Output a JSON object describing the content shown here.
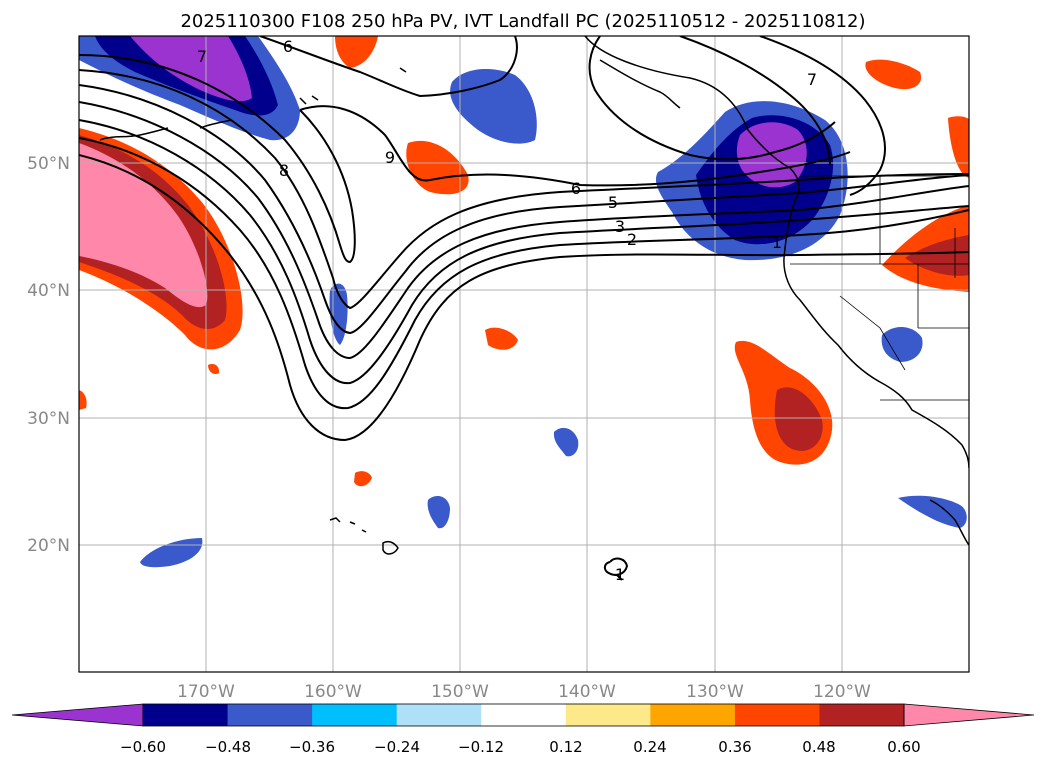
{
  "title": "2025110300 F108 250 hPa PV, IVT Landfall PC (2025110512 - 2025110812)",
  "map": {
    "projection": "PlateCarree",
    "lon_range": [
      -180,
      -110
    ],
    "lat_range": [
      10,
      60
    ],
    "x_ticks": [
      {
        "lon": -170,
        "label": "170°W"
      },
      {
        "lon": -160,
        "label": "160°W"
      },
      {
        "lon": -150,
        "label": "150°W"
      },
      {
        "lon": -140,
        "label": "140°W"
      },
      {
        "lon": -130,
        "label": "130°W"
      },
      {
        "lon": -120,
        "label": "120°W"
      }
    ],
    "y_ticks": [
      {
        "lat": 20,
        "label": "20°N"
      },
      {
        "lat": 30,
        "label": "30°N"
      },
      {
        "lat": 40,
        "label": "40°N"
      },
      {
        "lat": 50,
        "label": "50°N"
      }
    ],
    "grid": true
  },
  "contour_labels": [
    {
      "text": "7",
      "lon": -170.5,
      "lat": 57.5
    },
    {
      "text": "6",
      "lon": -163.5,
      "lat": 58.8
    },
    {
      "text": "8",
      "lon": -166.7,
      "lat": 49.4
    },
    {
      "text": "9",
      "lon": -155.6,
      "lat": 50.2
    },
    {
      "text": "6",
      "lon": -138.8,
      "lat": 48.2
    },
    {
      "text": "5",
      "lon": -137.0,
      "lat": 47.0
    },
    {
      "text": "3",
      "lon": -136.5,
      "lat": 45.3
    },
    {
      "text": "2",
      "lon": -135.6,
      "lat": 44.3
    },
    {
      "text": "1",
      "lon": -125.5,
      "lat": 43.7
    },
    {
      "text": "7",
      "lon": -123.6,
      "lat": 57.1
    },
    {
      "text": "1",
      "lon": -137.8,
      "lat": 17.8
    }
  ],
  "colorbar": {
    "levels": [
      -0.6,
      -0.48,
      -0.36,
      -0.24,
      -0.12,
      0.12,
      0.24,
      0.36,
      0.48,
      0.6
    ],
    "labels": [
      "−0.60",
      "−0.48",
      "−0.36",
      "−0.24",
      "−0.12",
      "0.12",
      "0.24",
      "0.36",
      "0.48",
      "0.60"
    ],
    "colors": [
      "#9a33d0",
      "#00008c",
      "#3a5acc",
      "#00bfff",
      "#aee0f8",
      "#ffffff",
      "#fde98a",
      "#ffa500",
      "#ff4500",
      "#b22222",
      "#ff88aa"
    ],
    "extend": "both"
  }
}
